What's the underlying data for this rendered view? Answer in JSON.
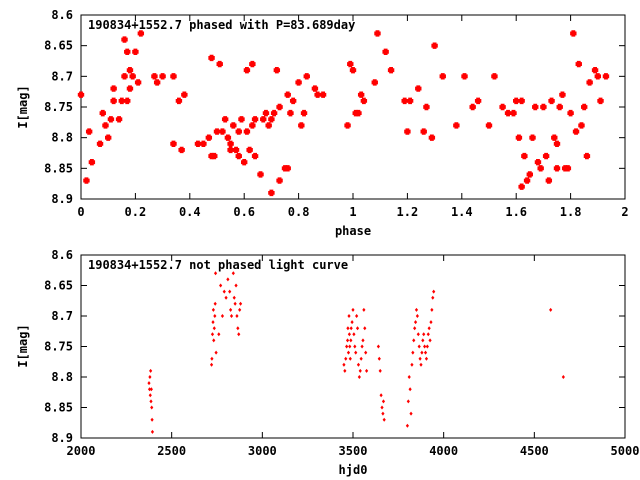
{
  "chart_data": [
    {
      "type": "scatter",
      "title": "190834+1552.7 phased with P=83.689day",
      "xlabel": "phase",
      "ylabel": "I[mag]",
      "xlim": [
        0,
        2
      ],
      "ylim": [
        8.6,
        8.9
      ],
      "y_inverted": true,
      "x_ticks": [
        0,
        0.2,
        0.4,
        0.6,
        0.8,
        1,
        1.2,
        1.4,
        1.6,
        1.8,
        2
      ],
      "x_tick_labels": [
        "0",
        "0.2",
        "0.4",
        "0.6",
        "0.8",
        "1",
        "1.2",
        "1.4",
        "1.6",
        "1.8",
        "2"
      ],
      "y_ticks": [
        8.6,
        8.65,
        8.7,
        8.75,
        8.8,
        8.85,
        8.9
      ],
      "y_tick_labels": [
        "8.6",
        "8.65",
        "8.7",
        "8.75",
        "8.8",
        "8.85",
        "8.9"
      ],
      "marker_color": "#ff0000",
      "grid": false,
      "points": [
        [
          0.0,
          8.73
        ],
        [
          0.02,
          8.87
        ],
        [
          0.03,
          8.79
        ],
        [
          0.04,
          8.84
        ],
        [
          0.07,
          8.81
        ],
        [
          0.08,
          8.76
        ],
        [
          0.09,
          8.78
        ],
        [
          0.1,
          8.8
        ],
        [
          0.11,
          8.77
        ],
        [
          0.12,
          8.74
        ],
        [
          0.12,
          8.72
        ],
        [
          0.14,
          8.77
        ],
        [
          0.15,
          8.74
        ],
        [
          0.16,
          8.7
        ],
        [
          0.16,
          8.64
        ],
        [
          0.17,
          8.66
        ],
        [
          0.17,
          8.74
        ],
        [
          0.18,
          8.69
        ],
        [
          0.18,
          8.72
        ],
        [
          0.19,
          8.7
        ],
        [
          0.2,
          8.66
        ],
        [
          0.21,
          8.71
        ],
        [
          0.22,
          8.63
        ],
        [
          0.27,
          8.7
        ],
        [
          0.28,
          8.71
        ],
        [
          0.3,
          8.7
        ],
        [
          0.34,
          8.7
        ],
        [
          0.34,
          8.81
        ],
        [
          0.36,
          8.74
        ],
        [
          0.37,
          8.82
        ],
        [
          0.38,
          8.73
        ],
        [
          0.43,
          8.81
        ],
        [
          0.45,
          8.81
        ],
        [
          0.47,
          8.8
        ],
        [
          0.48,
          8.67
        ],
        [
          0.48,
          8.83
        ],
        [
          0.49,
          8.83
        ],
        [
          0.5,
          8.79
        ],
        [
          0.51,
          8.68
        ],
        [
          0.52,
          8.79
        ],
        [
          0.53,
          8.77
        ],
        [
          0.54,
          8.8
        ],
        [
          0.55,
          8.81
        ],
        [
          0.55,
          8.82
        ],
        [
          0.56,
          8.78
        ],
        [
          0.57,
          8.82
        ],
        [
          0.58,
          8.79
        ],
        [
          0.58,
          8.83
        ],
        [
          0.59,
          8.77
        ],
        [
          0.6,
          8.84
        ],
        [
          0.61,
          8.69
        ],
        [
          0.61,
          8.79
        ],
        [
          0.62,
          8.82
        ],
        [
          0.63,
          8.78
        ],
        [
          0.63,
          8.68
        ],
        [
          0.64,
          8.83
        ],
        [
          0.64,
          8.77
        ],
        [
          0.66,
          8.86
        ],
        [
          0.67,
          8.77
        ],
        [
          0.68,
          8.76
        ],
        [
          0.69,
          8.78
        ],
        [
          0.7,
          8.77
        ],
        [
          0.7,
          8.89
        ],
        [
          0.71,
          8.76
        ],
        [
          0.72,
          8.69
        ],
        [
          0.73,
          8.87
        ],
        [
          0.73,
          8.75
        ],
        [
          0.75,
          8.85
        ],
        [
          0.76,
          8.85
        ],
        [
          0.76,
          8.73
        ],
        [
          0.77,
          8.76
        ],
        [
          0.78,
          8.74
        ],
        [
          0.8,
          8.71
        ],
        [
          0.81,
          8.78
        ],
        [
          0.82,
          8.76
        ],
        [
          0.83,
          8.7
        ],
        [
          0.86,
          8.72
        ],
        [
          0.87,
          8.73
        ],
        [
          0.89,
          8.73
        ],
        [
          0.98,
          8.78
        ],
        [
          0.99,
          8.68
        ],
        [
          1.0,
          8.69
        ],
        [
          1.01,
          8.76
        ],
        [
          1.02,
          8.76
        ],
        [
          1.03,
          8.73
        ],
        [
          1.04,
          8.74
        ],
        [
          1.08,
          8.71
        ],
        [
          1.09,
          8.63
        ],
        [
          1.12,
          8.66
        ],
        [
          1.14,
          8.69
        ],
        [
          1.19,
          8.74
        ],
        [
          1.2,
          8.79
        ],
        [
          1.21,
          8.74
        ],
        [
          1.24,
          8.72
        ],
        [
          1.26,
          8.79
        ],
        [
          1.27,
          8.75
        ],
        [
          1.29,
          8.8
        ],
        [
          1.3,
          8.65
        ],
        [
          1.33,
          8.7
        ],
        [
          1.38,
          8.78
        ],
        [
          1.41,
          8.7
        ],
        [
          1.44,
          8.75
        ],
        [
          1.46,
          8.74
        ],
        [
          1.5,
          8.78
        ],
        [
          1.52,
          8.7
        ],
        [
          1.55,
          8.75
        ],
        [
          1.57,
          8.76
        ],
        [
          1.59,
          8.76
        ],
        [
          1.6,
          8.74
        ],
        [
          1.61,
          8.8
        ],
        [
          1.62,
          8.74
        ],
        [
          1.62,
          8.88
        ],
        [
          1.63,
          8.83
        ],
        [
          1.64,
          8.87
        ],
        [
          1.65,
          8.86
        ],
        [
          1.66,
          8.8
        ],
        [
          1.67,
          8.75
        ],
        [
          1.68,
          8.84
        ],
        [
          1.69,
          8.85
        ],
        [
          1.7,
          8.75
        ],
        [
          1.71,
          8.83
        ],
        [
          1.72,
          8.87
        ],
        [
          1.73,
          8.74
        ],
        [
          1.74,
          8.8
        ],
        [
          1.75,
          8.85
        ],
        [
          1.75,
          8.81
        ],
        [
          1.76,
          8.75
        ],
        [
          1.77,
          8.73
        ],
        [
          1.78,
          8.85
        ],
        [
          1.79,
          8.85
        ],
        [
          1.8,
          8.76
        ],
        [
          1.81,
          8.63
        ],
        [
          1.82,
          8.79
        ],
        [
          1.83,
          8.68
        ],
        [
          1.84,
          8.78
        ],
        [
          1.85,
          8.75
        ],
        [
          1.86,
          8.83
        ],
        [
          1.87,
          8.71
        ],
        [
          1.89,
          8.69
        ],
        [
          1.9,
          8.7
        ],
        [
          1.91,
          8.74
        ],
        [
          1.93,
          8.7
        ]
      ]
    },
    {
      "type": "scatter",
      "title": "190834+1552.7 not phased light curve",
      "xlabel": "hjd0",
      "ylabel": "I[mag]",
      "xlim": [
        2000,
        5000
      ],
      "ylim": [
        8.6,
        8.9
      ],
      "y_inverted": true,
      "x_ticks": [
        2000,
        2500,
        3000,
        3500,
        4000,
        4500,
        5000
      ],
      "x_tick_labels": [
        "2000",
        "2500",
        "3000",
        "3500",
        "4000",
        "4500",
        "5000"
      ],
      "y_ticks": [
        8.6,
        8.65,
        8.7,
        8.75,
        8.8,
        8.85,
        8.9
      ],
      "y_tick_labels": [
        "8.6",
        "8.65",
        "8.7",
        "8.75",
        "8.8",
        "8.85",
        "8.9"
      ],
      "marker_color": "#ff0000",
      "grid": false,
      "points": [
        [
          2375,
          8.81
        ],
        [
          2378,
          8.82
        ],
        [
          2380,
          8.8
        ],
        [
          2382,
          8.83
        ],
        [
          2384,
          8.79
        ],
        [
          2386,
          8.84
        ],
        [
          2388,
          8.82
        ],
        [
          2390,
          8.85
        ],
        [
          2392,
          8.87
        ],
        [
          2394,
          8.89
        ],
        [
          2720,
          8.78
        ],
        [
          2722,
          8.77
        ],
        [
          2725,
          8.73
        ],
        [
          2728,
          8.71
        ],
        [
          2730,
          8.69
        ],
        [
          2732,
          8.74
        ],
        [
          2735,
          8.72
        ],
        [
          2738,
          8.7
        ],
        [
          2740,
          8.68
        ],
        [
          2742,
          8.63
        ],
        [
          2745,
          8.76
        ],
        [
          2760,
          8.73
        ],
        [
          2770,
          8.65
        ],
        [
          2780,
          8.7
        ],
        [
          2790,
          8.66
        ],
        [
          2800,
          8.67
        ],
        [
          2810,
          8.64
        ],
        [
          2820,
          8.66
        ],
        [
          2825,
          8.69
        ],
        [
          2830,
          8.7
        ],
        [
          2840,
          8.63
        ],
        [
          2845,
          8.67
        ],
        [
          2850,
          8.68
        ],
        [
          2855,
          8.65
        ],
        [
          2860,
          8.7
        ],
        [
          2865,
          8.72
        ],
        [
          2870,
          8.73
        ],
        [
          2875,
          8.69
        ],
        [
          2880,
          8.68
        ],
        [
          3450,
          8.78
        ],
        [
          3455,
          8.79
        ],
        [
          3460,
          8.77
        ],
        [
          3465,
          8.75
        ],
        [
          3470,
          8.74
        ],
        [
          3472,
          8.72
        ],
        [
          3475,
          8.76
        ],
        [
          3478,
          8.7
        ],
        [
          3480,
          8.73
        ],
        [
          3482,
          8.75
        ],
        [
          3485,
          8.77
        ],
        [
          3488,
          8.74
        ],
        [
          3490,
          8.72
        ],
        [
          3495,
          8.71
        ],
        [
          3500,
          8.69
        ],
        [
          3505,
          8.73
        ],
        [
          3510,
          8.75
        ],
        [
          3515,
          8.76
        ],
        [
          3520,
          8.7
        ],
        [
          3525,
          8.72
        ],
        [
          3530,
          8.78
        ],
        [
          3535,
          8.8
        ],
        [
          3540,
          8.79
        ],
        [
          3545,
          8.77
        ],
        [
          3550,
          8.75
        ],
        [
          3555,
          8.74
        ],
        [
          3560,
          8.69
        ],
        [
          3565,
          8.72
        ],
        [
          3570,
          8.76
        ],
        [
          3575,
          8.79
        ],
        [
          3640,
          8.75
        ],
        [
          3645,
          8.77
        ],
        [
          3650,
          8.79
        ],
        [
          3655,
          8.83
        ],
        [
          3660,
          8.85
        ],
        [
          3665,
          8.86
        ],
        [
          3668,
          8.84
        ],
        [
          3672,
          8.87
        ],
        [
          3800,
          8.88
        ],
        [
          3805,
          8.84
        ],
        [
          3810,
          8.8
        ],
        [
          3815,
          8.82
        ],
        [
          3820,
          8.86
        ],
        [
          3825,
          8.78
        ],
        [
          3830,
          8.76
        ],
        [
          3835,
          8.74
        ],
        [
          3840,
          8.72
        ],
        [
          3845,
          8.71
        ],
        [
          3850,
          8.69
        ],
        [
          3855,
          8.7
        ],
        [
          3860,
          8.73
        ],
        [
          3865,
          8.75
        ],
        [
          3870,
          8.77
        ],
        [
          3875,
          8.78
        ],
        [
          3880,
          8.76
        ],
        [
          3885,
          8.74
        ],
        [
          3890,
          8.73
        ],
        [
          3895,
          8.75
        ],
        [
          3900,
          8.76
        ],
        [
          3905,
          8.77
        ],
        [
          3910,
          8.75
        ],
        [
          3915,
          8.73
        ],
        [
          3920,
          8.72
        ],
        [
          3925,
          8.74
        ],
        [
          3930,
          8.71
        ],
        [
          3935,
          8.69
        ],
        [
          3940,
          8.67
        ],
        [
          3945,
          8.66
        ],
        [
          4590,
          8.69
        ],
        [
          4660,
          8.8
        ]
      ]
    }
  ]
}
